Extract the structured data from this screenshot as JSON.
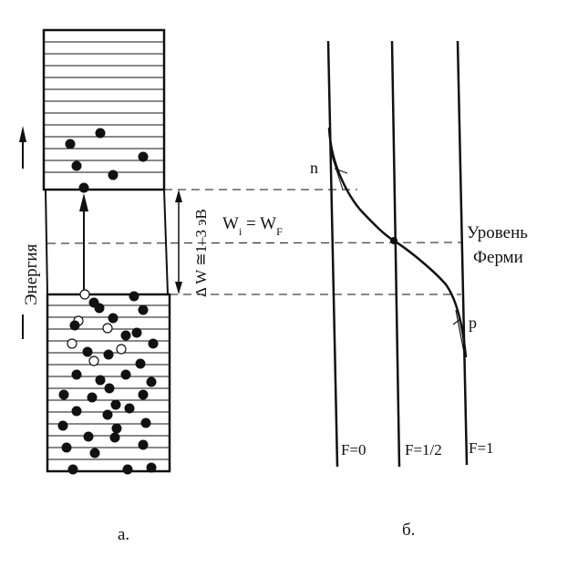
{
  "energy_axis_label": "Энергия",
  "gap_label": "Δ W ≅1–3 эВ",
  "level_eq": {
    "w": "W",
    "sub_i": "i",
    "eq": " = ",
    "w2": "W",
    "sub_f": "F"
  },
  "fermi_label": [
    "Уровень",
    "Ферми"
  ],
  "band_labels": {
    "n": "n",
    "p": "p"
  },
  "occupancy_labels": {
    "f0": "F=0",
    "fhalf": "F=1/2",
    "f1": "F=1"
  },
  "panel_labels": {
    "a": "а.",
    "b": "б."
  },
  "colors": {
    "ink": "#111111",
    "background": "#ffffff"
  }
}
